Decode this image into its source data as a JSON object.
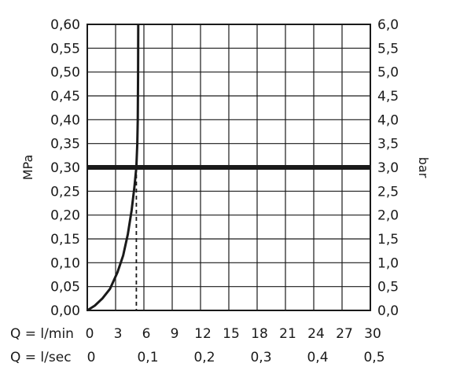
{
  "chart_data": {
    "type": "line",
    "xlabels": {
      "row1_prefix": "Q = l/min",
      "row2_prefix": "Q = l/sec"
    },
    "ylabel_left": "MPa",
    "ylabel_right": "bar",
    "xlim": [
      0,
      30
    ],
    "ylim": [
      0,
      0.6
    ],
    "x_ticks_lmin": [
      "0",
      "3",
      "6",
      "9",
      "12",
      "15",
      "18",
      "21",
      "24",
      "27",
      "30"
    ],
    "x_ticks_lsec": [
      {
        "label": "0",
        "at": 0
      },
      {
        "label": "0,1",
        "at": 6
      },
      {
        "label": "0,2",
        "at": 12
      },
      {
        "label": "0,3",
        "at": 18
      },
      {
        "label": "0,4",
        "at": 24
      },
      {
        "label": "0,5",
        "at": 30
      }
    ],
    "y_ticks_left": [
      "0,00",
      "0,05",
      "0,10",
      "0,15",
      "0,20",
      "0,25",
      "0,30",
      "0,35",
      "0,40",
      "0,45",
      "0,50",
      "0,55",
      "0,60"
    ],
    "y_ticks_right": [
      "0,0",
      "0,5",
      "1,0",
      "1,5",
      "2,0",
      "2,5",
      "3,0",
      "3,5",
      "4,0",
      "4,5",
      "5,0",
      "5,5",
      "6,0"
    ],
    "grid": true,
    "series": [
      {
        "values": [
          [
            0,
            0
          ],
          [
            0.8,
            0.01
          ],
          [
            1.6,
            0.025
          ],
          [
            2.4,
            0.045
          ],
          [
            3.2,
            0.08
          ],
          [
            3.8,
            0.115
          ],
          [
            4.3,
            0.16
          ],
          [
            4.7,
            0.21
          ],
          [
            5.0,
            0.26
          ],
          [
            5.2,
            0.3
          ],
          [
            5.3,
            0.35
          ],
          [
            5.35,
            0.4
          ],
          [
            5.38,
            0.5
          ],
          [
            5.4,
            0.6
          ]
        ]
      }
    ],
    "reference_line_y": 0.3,
    "reference_drop_x": 5.2
  }
}
